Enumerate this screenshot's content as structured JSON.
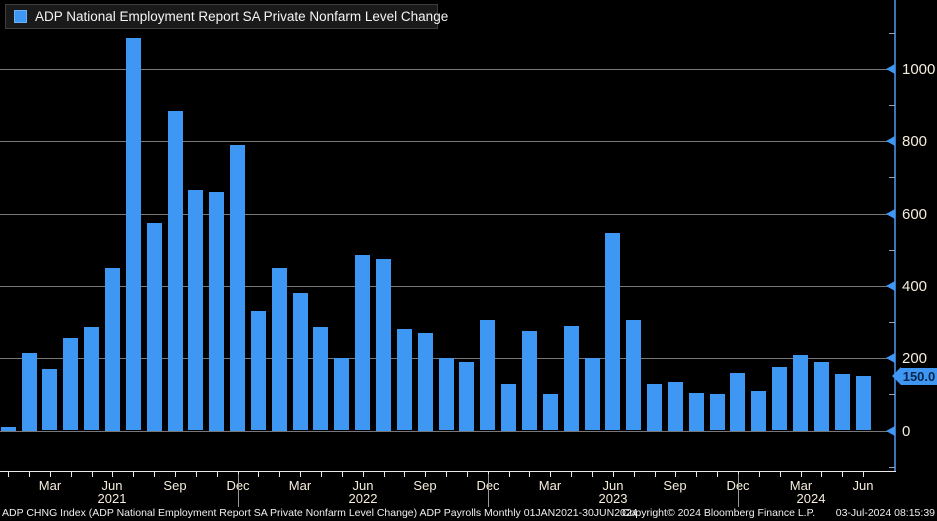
{
  "legend": {
    "label": "ADP National Employment Report SA Private Nonfarm Level Change"
  },
  "chart_data": {
    "type": "bar",
    "title": "ADP National Employment Report SA Private Nonfarm Level Change",
    "x": [
      "Jan 2021",
      "Feb 2021",
      "Mar 2021",
      "Apr 2021",
      "May 2021",
      "Jun 2021",
      "Jul 2021",
      "Aug 2021",
      "Sep 2021",
      "Oct 2021",
      "Nov 2021",
      "Dec 2021",
      "Jan 2022",
      "Feb 2022",
      "Mar 2022",
      "Apr 2022",
      "May 2022",
      "Jun 2022",
      "Jul 2022",
      "Aug 2022",
      "Sep 2022",
      "Oct 2022",
      "Nov 2022",
      "Dec 2022",
      "Jan 2023",
      "Feb 2023",
      "Mar 2023",
      "Apr 2023",
      "May 2023",
      "Jun 2023",
      "Jul 2023",
      "Aug 2023",
      "Sep 2023",
      "Oct 2023",
      "Nov 2023",
      "Dec 2023",
      "Jan 2024",
      "Feb 2024",
      "Mar 2024",
      "Apr 2024",
      "May 2024",
      "Jun 2024"
    ],
    "values": [
      10,
      215,
      170,
      255,
      285,
      450,
      1085,
      575,
      885,
      665,
      660,
      790,
      330,
      450,
      380,
      285,
      200,
      485,
      475,
      280,
      270,
      200,
      190,
      305,
      130,
      275,
      100,
      290,
      200,
      545,
      305,
      130,
      135,
      105,
      100,
      160,
      110,
      175,
      210,
      190,
      155,
      150
    ],
    "ylim": [
      -107,
      1164
    ],
    "yticks": [
      0,
      200,
      400,
      600,
      800,
      1000
    ],
    "minor_yticks": [
      -100,
      100,
      300,
      500,
      700,
      900,
      1100
    ],
    "x_tick_months": [
      "Mar",
      "Jun",
      "Sep",
      "Dec"
    ],
    "year_labels": [
      {
        "text": "2021",
        "at_index": 5
      },
      {
        "text": "2022",
        "at_index": 17
      },
      {
        "text": "2023",
        "at_index": 29
      },
      {
        "text": "2024",
        "at_index": 38.5
      }
    ],
    "year_separator_indices": [
      11,
      23,
      35
    ],
    "last_value_label": "150.0",
    "grid": true,
    "legend_position": "top-left"
  },
  "colors": {
    "background": "#000000",
    "bar": "#3E97F2",
    "axis_line": "#3C72B8",
    "gridline": "#777777",
    "tick_label": "#F5EDDC",
    "x_axis_line": "#E8E8E8",
    "badge_bg": "#3E97F2",
    "badge_text": "#06264F",
    "legend_bg": "#1A1A1A",
    "footer_text": "#F0F0F0"
  },
  "footer": {
    "left": "ADP CHNG Index (ADP National Employment Report SA Private Nonfarm Level Change) ADP Payrolls  Monthly 01JAN2021-30JUN2024",
    "center": "Copyright© 2024 Bloomberg Finance L.P.",
    "right": "03-Jul-2024 08:15:39"
  }
}
